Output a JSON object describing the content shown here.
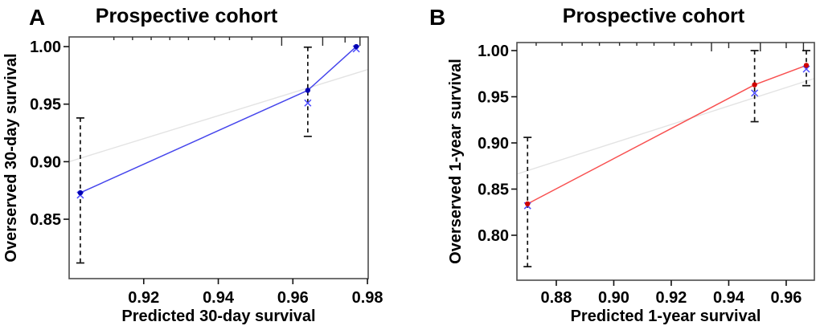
{
  "chart_data": [
    {
      "type": "line",
      "panel_letter": "A",
      "title": "Prospective cohort",
      "xlabel": "Predicted 30-day survival",
      "ylabel": "Overserved 30-day survival",
      "xlim": [
        0.9,
        0.9802
      ],
      "ylim": [
        0.7984,
        1.0084
      ],
      "xticks": [
        {
          "v": 0.92,
          "label": "0.92"
        },
        {
          "v": 0.94,
          "label": "0.94"
        },
        {
          "v": 0.96,
          "label": "0.96"
        },
        {
          "v": 0.98,
          "label": "0.98"
        }
      ],
      "yticks": [
        {
          "v": 0.85,
          "label": "0.85"
        },
        {
          "v": 0.9,
          "label": "0.90"
        },
        {
          "v": 0.95,
          "label": "0.95"
        },
        {
          "v": 1.0,
          "label": "1.00"
        }
      ],
      "grid": false,
      "legend": "none",
      "reference_line": "identity",
      "colors": {
        "line": "#4545ec",
        "dot": "#0000b3",
        "cross": "#4a4aff",
        "error_bar": "#111111",
        "reference": "#e3e3e3",
        "frame": "#4d4d4d"
      },
      "points": [
        {
          "x": 0.903,
          "y": 0.873,
          "ci_low": 0.812,
          "ci_high": 0.938,
          "cross_y": 0.871
        },
        {
          "x": 0.964,
          "y": 0.962,
          "ci_low": 0.922,
          "ci_high": 0.9995,
          "cross_y": 0.951
        },
        {
          "x": 0.977,
          "y": 1.0,
          "ci_low": null,
          "ci_high": null,
          "cross_y": 0.998
        }
      ],
      "rug_x": [
        {
          "v": 0.912,
          "len": 1
        },
        {
          "v": 0.917,
          "len": 1
        },
        {
          "v": 0.922,
          "len": 1
        },
        {
          "v": 0.927,
          "len": 1
        },
        {
          "v": 0.932,
          "len": 1
        },
        {
          "v": 0.939,
          "len": 1
        },
        {
          "v": 0.943,
          "len": 1
        },
        {
          "v": 0.949,
          "len": 1
        },
        {
          "v": 0.957,
          "len": 3
        },
        {
          "v": 0.968,
          "len": 3
        },
        {
          "v": 0.974,
          "len": 2
        },
        {
          "v": 0.978,
          "len": 3
        }
      ]
    },
    {
      "type": "line",
      "panel_letter": "B",
      "title": "Prospective cohort",
      "xlabel": "Predicted 1-year survival",
      "ylabel": "Overserved 1-year survival",
      "xlim": [
        0.8663,
        0.9698
      ],
      "ylim": [
        0.7513,
        1.0087
      ],
      "xticks": [
        {
          "v": 0.88,
          "label": "0.88"
        },
        {
          "v": 0.9,
          "label": "0.90"
        },
        {
          "v": 0.92,
          "label": "0.92"
        },
        {
          "v": 0.94,
          "label": "0.94"
        },
        {
          "v": 0.96,
          "label": "0.96"
        }
      ],
      "yticks": [
        {
          "v": 0.8,
          "label": "0.80"
        },
        {
          "v": 0.85,
          "label": "0.85"
        },
        {
          "v": 0.9,
          "label": "0.90"
        },
        {
          "v": 0.95,
          "label": "0.95"
        },
        {
          "v": 1.0,
          "label": "1.00"
        }
      ],
      "grid": false,
      "legend": "none",
      "reference_line": "identity",
      "colors": {
        "line": "#f85050",
        "dot": "#cf0000",
        "cross": "#4a4aff",
        "error_bar": "#111111",
        "reference": "#e3e3e3",
        "frame": "#4d4d4d"
      },
      "points": [
        {
          "x": 0.87,
          "y": 0.834,
          "ci_low": 0.766,
          "ci_high": 0.906,
          "cross_y": 0.832
        },
        {
          "x": 0.949,
          "y": 0.963,
          "ci_low": 0.923,
          "ci_high": 1.0,
          "cross_y": 0.954
        },
        {
          "x": 0.967,
          "y": 0.984,
          "ci_low": 0.962,
          "ci_high": 1.0,
          "cross_y": 0.98
        }
      ],
      "rug_x": [
        {
          "v": 0.873,
          "len": 1
        },
        {
          "v": 0.882,
          "len": 1
        },
        {
          "v": 0.889,
          "len": 1
        },
        {
          "v": 0.895,
          "len": 1
        },
        {
          "v": 0.902,
          "len": 1
        },
        {
          "v": 0.908,
          "len": 1
        },
        {
          "v": 0.914,
          "len": 1
        },
        {
          "v": 0.921,
          "len": 1
        },
        {
          "v": 0.927,
          "len": 1
        },
        {
          "v": 0.934,
          "len": 3
        },
        {
          "v": 0.94,
          "len": 2
        },
        {
          "v": 0.951,
          "len": 3
        },
        {
          "v": 0.96,
          "len": 2
        },
        {
          "v": 0.966,
          "len": 3
        }
      ]
    }
  ]
}
